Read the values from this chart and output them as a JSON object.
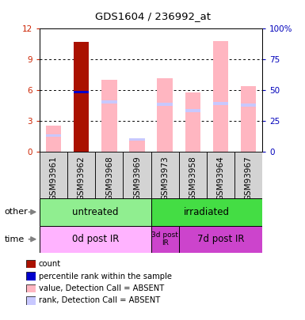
{
  "title": "GDS1604 / 236992_at",
  "samples": [
    "GSM93961",
    "GSM93962",
    "GSM93968",
    "GSM93969",
    "GSM93973",
    "GSM93958",
    "GSM93964",
    "GSM93967"
  ],
  "ylim_left": [
    0,
    12
  ],
  "ylim_right": [
    0,
    100
  ],
  "yticks_left": [
    0,
    3,
    6,
    9,
    12
  ],
  "yticks_right": [
    0,
    25,
    50,
    75,
    100
  ],
  "yticklabels_right": [
    "0",
    "25",
    "50",
    "75",
    "100%"
  ],
  "red_bars": [
    0,
    10.7,
    0,
    0,
    0,
    0,
    0,
    0
  ],
  "blue_bars_bottom": [
    0,
    5.72,
    0,
    0,
    0,
    0,
    0,
    0
  ],
  "blue_bars_height": [
    0,
    0.22,
    0,
    0,
    0,
    0,
    0,
    0
  ],
  "pink_bars": [
    2.6,
    0,
    7.0,
    1.3,
    7.2,
    5.8,
    10.8,
    6.4
  ],
  "lightblue_bars_bottom": [
    1.5,
    0,
    4.7,
    1.1,
    4.5,
    3.9,
    4.6,
    4.4
  ],
  "lightblue_bars_height": [
    0.25,
    0,
    0.3,
    0.25,
    0.3,
    0.3,
    0.3,
    0.3
  ],
  "bar_width": 0.55,
  "legend_items": [
    {
      "color": "#AA1100",
      "label": "count"
    },
    {
      "color": "#0000CC",
      "label": "percentile rank within the sample"
    },
    {
      "color": "#FFB6C1",
      "label": "value, Detection Call = ABSENT"
    },
    {
      "color": "#C8C8FF",
      "label": "rank, Detection Call = ABSENT"
    }
  ],
  "untreated_color": "#90EE90",
  "irradiated_color": "#44DD44",
  "time0_color": "#FFB3FF",
  "time3_color": "#CC44CC",
  "time7_color": "#CC44CC",
  "sample_bg_color": "#D3D3D3",
  "axis_color_left": "#CC2200",
  "axis_color_right": "#0000BB"
}
